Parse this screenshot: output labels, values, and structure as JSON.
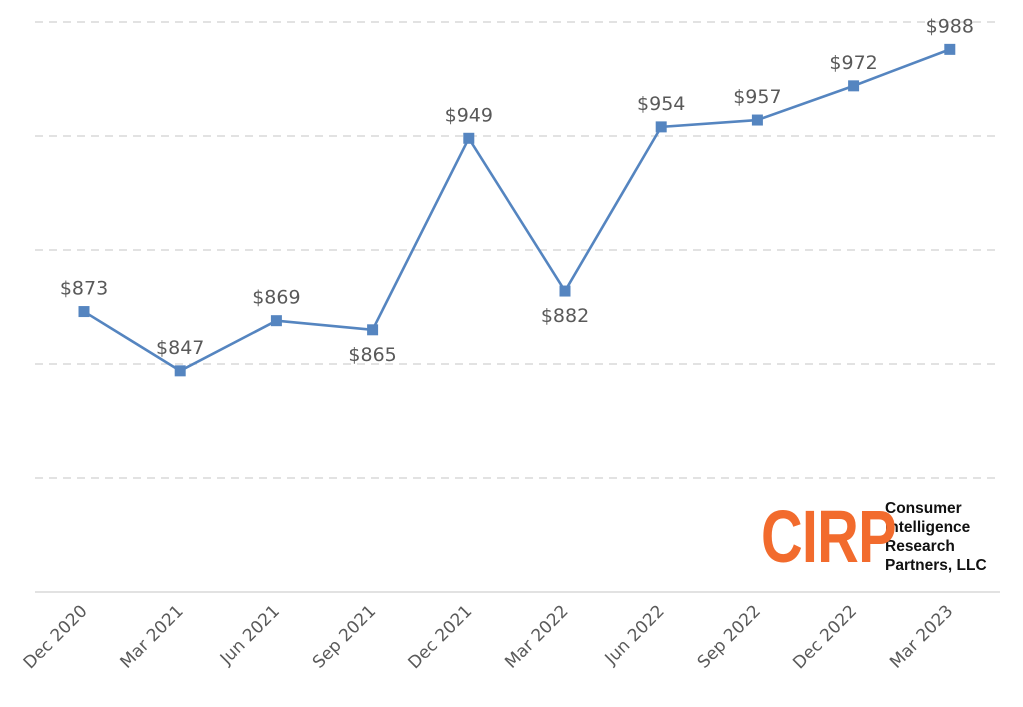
{
  "chart_data": {
    "type": "line",
    "title": "",
    "xlabel": "",
    "ylabel": "",
    "categories": [
      "Dec 2020",
      "Mar 2021",
      "Jun 2021",
      "Sep 2021",
      "Dec 2021",
      "Mar 2022",
      "Jun 2022",
      "Sep 2022",
      "Dec 2022",
      "Mar 2023"
    ],
    "series": [
      {
        "values": [
          873,
          847,
          869,
          865,
          949,
          882,
          954,
          957,
          972,
          988
        ],
        "labels": [
          "$873",
          "$847",
          "$869",
          "$865",
          "$949",
          "$882",
          "$954",
          "$957",
          "$972",
          "$988"
        ],
        "label_position": [
          "above",
          "above",
          "above",
          "below",
          "above",
          "below",
          "above",
          "above",
          "above",
          "above"
        ],
        "color": "#5585c0",
        "marker": "square"
      }
    ],
    "ylim": [
      750,
      1000
    ],
    "grid": true,
    "legend": "none"
  },
  "logo": {
    "mark": "CIRP",
    "lines": [
      "Consumer",
      "Intelligence",
      "Research",
      "Partners, LLC"
    ],
    "mark_color": "#f26b2d"
  }
}
